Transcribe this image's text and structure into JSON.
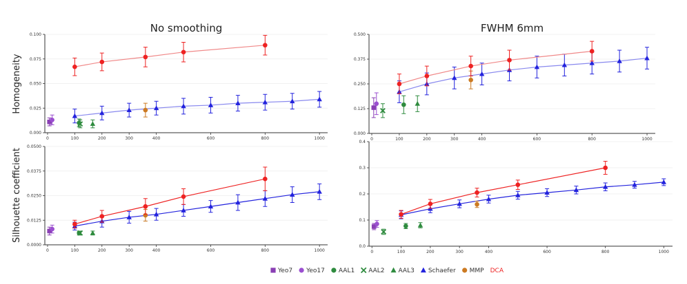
{
  "colors": {
    "Yeo7": "#8a3fb4",
    "Yeo17": "#9b4fd0",
    "AAL1": "#2e8b3e",
    "AAL2": "#2e8b3e",
    "AAL3": "#2e8b3e",
    "Schaefer": "#2222dd",
    "MMP": "#cc7a22",
    "DCA": "#ee2222",
    "SchaeferLine": "#8888ee",
    "DCALine": "#f08888"
  },
  "legend": [
    {
      "key": "Yeo7",
      "label": "Yeo7",
      "marker": "square"
    },
    {
      "key": "Yeo17",
      "label": "Yeo17",
      "marker": "circle"
    },
    {
      "key": "AAL1",
      "label": "AAL1",
      "marker": "circle"
    },
    {
      "key": "AAL2",
      "label": "AAL2",
      "marker": "x"
    },
    {
      "key": "AAL3",
      "label": "AAL3",
      "marker": "triangle"
    },
    {
      "key": "Schaefer",
      "label": "Schaefer",
      "marker": "triangle"
    },
    {
      "key": "MMP",
      "label": "MMP",
      "marker": "circle"
    },
    {
      "key": "DCA",
      "label": "DCA",
      "marker": "text"
    }
  ],
  "ylabels": {
    "top": "Homogeneity",
    "bottom": "Silhouette coefficient"
  },
  "chart_data": [
    {
      "id": "hom-nosmooth",
      "type": "scatter",
      "title": "No smoothing",
      "xlim": [
        -10,
        1030
      ],
      "ylim": [
        0,
        0.1
      ],
      "xticks": [
        0,
        100,
        200,
        300,
        400,
        600,
        800,
        1000
      ],
      "yticks": [
        0,
        0.025,
        0.05,
        0.075,
        0.1
      ],
      "ytick_labels": [
        "0.000",
        "0.025",
        "0.050",
        "0.075",
        "0.100"
      ],
      "series": [
        {
          "name": "Yeo7",
          "marker": "square",
          "points": [
            {
              "x": 7,
              "y": 0.011,
              "err": 0.004
            }
          ]
        },
        {
          "name": "Yeo17",
          "marker": "circle",
          "points": [
            {
              "x": 17,
              "y": 0.013,
              "err": 0.005
            }
          ]
        },
        {
          "name": "AAL1",
          "marker": "circle",
          "points": [
            {
              "x": 116,
              "y": 0.01,
              "err": 0.004
            }
          ]
        },
        {
          "name": "AAL2",
          "marker": "x",
          "points": [
            {
              "x": 120,
              "y": 0.009,
              "err": 0.004
            }
          ]
        },
        {
          "name": "AAL3",
          "marker": "triangle",
          "points": [
            {
              "x": 166,
              "y": 0.009,
              "err": 0.004
            }
          ]
        },
        {
          "name": "Schaefer",
          "marker": "triangle",
          "line": true,
          "points": [
            {
              "x": 100,
              "y": 0.017,
              "err": 0.007
            },
            {
              "x": 200,
              "y": 0.02,
              "err": 0.007
            },
            {
              "x": 300,
              "y": 0.023,
              "err": 0.007
            },
            {
              "x": 400,
              "y": 0.025,
              "err": 0.007
            },
            {
              "x": 500,
              "y": 0.027,
              "err": 0.008
            },
            {
              "x": 600,
              "y": 0.028,
              "err": 0.008
            },
            {
              "x": 700,
              "y": 0.03,
              "err": 0.008
            },
            {
              "x": 800,
              "y": 0.031,
              "err": 0.008
            },
            {
              "x": 900,
              "y": 0.032,
              "err": 0.008
            },
            {
              "x": 1000,
              "y": 0.034,
              "err": 0.008
            }
          ]
        },
        {
          "name": "MMP",
          "marker": "circle",
          "points": [
            {
              "x": 360,
              "y": 0.023,
              "err": 0.007
            }
          ]
        },
        {
          "name": "DCA",
          "marker": "circle",
          "line": true,
          "points": [
            {
              "x": 100,
              "y": 0.067,
              "err": 0.009
            },
            {
              "x": 200,
              "y": 0.072,
              "err": 0.009
            },
            {
              "x": 360,
              "y": 0.077,
              "err": 0.01
            },
            {
              "x": 500,
              "y": 0.082,
              "err": 0.01
            },
            {
              "x": 800,
              "y": 0.089,
              "err": 0.01
            }
          ]
        }
      ]
    },
    {
      "id": "hom-fwhm",
      "type": "scatter",
      "title": "FWHM 6mm",
      "xlim": [
        -10,
        1030
      ],
      "ylim": [
        0,
        0.5
      ],
      "xticks": [
        0,
        100,
        200,
        300,
        400,
        600,
        800,
        1000
      ],
      "yticks": [
        0,
        0.125,
        0.25,
        0.375,
        0.5
      ],
      "ytick_labels": [
        "0.000",
        "0.125",
        "0.250",
        "0.375",
        "0.500"
      ],
      "series": [
        {
          "name": "Yeo7",
          "marker": "square",
          "points": [
            {
              "x": 7,
              "y": 0.13,
              "err": 0.05
            }
          ]
        },
        {
          "name": "Yeo17",
          "marker": "circle",
          "points": [
            {
              "x": 17,
              "y": 0.15,
              "err": 0.055
            }
          ]
        },
        {
          "name": "AAL2",
          "marker": "x",
          "points": [
            {
              "x": 40,
              "y": 0.115,
              "err": 0.035
            }
          ]
        },
        {
          "name": "AAL1",
          "marker": "circle",
          "points": [
            {
              "x": 116,
              "y": 0.145,
              "err": 0.045
            }
          ]
        },
        {
          "name": "AAL3",
          "marker": "triangle",
          "points": [
            {
              "x": 166,
              "y": 0.15,
              "err": 0.04
            }
          ]
        },
        {
          "name": "Schaefer",
          "marker": "triangle",
          "line": true,
          "points": [
            {
              "x": 100,
              "y": 0.21,
              "err": 0.055
            },
            {
              "x": 200,
              "y": 0.25,
              "err": 0.055
            },
            {
              "x": 300,
              "y": 0.28,
              "err": 0.055
            },
            {
              "x": 400,
              "y": 0.3,
              "err": 0.055
            },
            {
              "x": 500,
              "y": 0.32,
              "err": 0.055
            },
            {
              "x": 600,
              "y": 0.335,
              "err": 0.055
            },
            {
              "x": 700,
              "y": 0.345,
              "err": 0.055
            },
            {
              "x": 800,
              "y": 0.355,
              "err": 0.055
            },
            {
              "x": 900,
              "y": 0.365,
              "err": 0.055
            },
            {
              "x": 1000,
              "y": 0.38,
              "err": 0.055
            }
          ]
        },
        {
          "name": "MMP",
          "marker": "circle",
          "points": [
            {
              "x": 360,
              "y": 0.27,
              "err": 0.045
            }
          ]
        },
        {
          "name": "DCA",
          "marker": "circle",
          "line": true,
          "points": [
            {
              "x": 100,
              "y": 0.25,
              "err": 0.05
            },
            {
              "x": 200,
              "y": 0.29,
              "err": 0.05
            },
            {
              "x": 360,
              "y": 0.34,
              "err": 0.05
            },
            {
              "x": 500,
              "y": 0.37,
              "err": 0.05
            },
            {
              "x": 800,
              "y": 0.415,
              "err": 0.05
            }
          ]
        }
      ]
    },
    {
      "id": "sil-nosmooth",
      "type": "scatter",
      "title": "",
      "xlim": [
        -10,
        1030
      ],
      "ylim": [
        0,
        0.05
      ],
      "xticks": [
        0,
        100,
        200,
        300,
        400,
        600,
        800,
        1000
      ],
      "yticks": [
        0,
        0.0125,
        0.025,
        0.0375,
        0.05
      ],
      "ytick_labels": [
        "0.0000",
        "0.0125",
        "0.0250",
        "0.0375",
        "0.0500"
      ],
      "series": [
        {
          "name": "Yeo7",
          "marker": "square",
          "points": [
            {
              "x": 7,
              "y": 0.007,
              "err": 0.002
            }
          ]
        },
        {
          "name": "Yeo17",
          "marker": "circle",
          "points": [
            {
              "x": 17,
              "y": 0.008,
              "err": 0.002
            }
          ]
        },
        {
          "name": "AAL1",
          "marker": "circle",
          "points": [
            {
              "x": 116,
              "y": 0.006,
              "err": 0.001
            }
          ]
        },
        {
          "name": "AAL2",
          "marker": "x",
          "points": [
            {
              "x": 120,
              "y": 0.006,
              "err": 0.001
            }
          ]
        },
        {
          "name": "AAL3",
          "marker": "triangle",
          "points": [
            {
              "x": 166,
              "y": 0.006,
              "err": 0.001
            }
          ]
        },
        {
          "name": "Schaefer",
          "marker": "triangle",
          "line": true,
          "points": [
            {
              "x": 100,
              "y": 0.0095,
              "err": 0.002
            },
            {
              "x": 200,
              "y": 0.012,
              "err": 0.003
            },
            {
              "x": 300,
              "y": 0.014,
              "err": 0.003
            },
            {
              "x": 400,
              "y": 0.0155,
              "err": 0.003
            },
            {
              "x": 500,
              "y": 0.0175,
              "err": 0.003
            },
            {
              "x": 600,
              "y": 0.0195,
              "err": 0.003
            },
            {
              "x": 700,
              "y": 0.0215,
              "err": 0.004
            },
            {
              "x": 800,
              "y": 0.0235,
              "err": 0.004
            },
            {
              "x": 900,
              "y": 0.0255,
              "err": 0.004
            },
            {
              "x": 1000,
              "y": 0.027,
              "err": 0.004
            }
          ]
        },
        {
          "name": "MMP",
          "marker": "circle",
          "points": [
            {
              "x": 360,
              "y": 0.015,
              "err": 0.003
            }
          ]
        },
        {
          "name": "DCA",
          "marker": "circle",
          "line": true,
          "points": [
            {
              "x": 100,
              "y": 0.0105,
              "err": 0.002
            },
            {
              "x": 200,
              "y": 0.0145,
              "err": 0.003
            },
            {
              "x": 360,
              "y": 0.0195,
              "err": 0.004
            },
            {
              "x": 500,
              "y": 0.0245,
              "err": 0.004
            },
            {
              "x": 800,
              "y": 0.0335,
              "err": 0.006
            }
          ]
        }
      ]
    },
    {
      "id": "sil-fwhm",
      "type": "scatter",
      "title": "",
      "xlim": [
        -10,
        1030
      ],
      "ylim": [
        0,
        0.4
      ],
      "xticks": [
        0,
        100,
        200,
        300,
        400,
        600,
        800,
        1000
      ],
      "yticks": [
        0,
        0.1,
        0.2,
        0.3,
        0.4
      ],
      "ytick_labels": [
        "0.0",
        "0.1",
        "0.2",
        "0.3",
        "0.4"
      ],
      "series": [
        {
          "name": "Yeo7",
          "marker": "square",
          "points": [
            {
              "x": 7,
              "y": 0.075,
              "err": 0.012
            }
          ]
        },
        {
          "name": "Yeo17",
          "marker": "circle",
          "points": [
            {
              "x": 17,
              "y": 0.085,
              "err": 0.013
            }
          ]
        },
        {
          "name": "AAL2",
          "marker": "x",
          "points": [
            {
              "x": 40,
              "y": 0.055,
              "err": 0.01
            }
          ]
        },
        {
          "name": "AAL1",
          "marker": "circle",
          "points": [
            {
              "x": 116,
              "y": 0.077,
              "err": 0.01
            }
          ]
        },
        {
          "name": "AAL3",
          "marker": "triangle",
          "points": [
            {
              "x": 166,
              "y": 0.08,
              "err": 0.01
            }
          ]
        },
        {
          "name": "Schaefer",
          "marker": "triangle",
          "line": true,
          "points": [
            {
              "x": 100,
              "y": 0.12,
              "err": 0.015
            },
            {
              "x": 200,
              "y": 0.143,
              "err": 0.015
            },
            {
              "x": 300,
              "y": 0.162,
              "err": 0.015
            },
            {
              "x": 400,
              "y": 0.18,
              "err": 0.015
            },
            {
              "x": 500,
              "y": 0.195,
              "err": 0.015
            },
            {
              "x": 600,
              "y": 0.205,
              "err": 0.015
            },
            {
              "x": 700,
              "y": 0.215,
              "err": 0.015
            },
            {
              "x": 800,
              "y": 0.227,
              "err": 0.015
            },
            {
              "x": 900,
              "y": 0.235,
              "err": 0.013
            },
            {
              "x": 1000,
              "y": 0.245,
              "err": 0.013
            }
          ]
        },
        {
          "name": "MMP",
          "marker": "circle",
          "points": [
            {
              "x": 360,
              "y": 0.16,
              "err": 0.012
            }
          ]
        },
        {
          "name": "DCA",
          "marker": "circle",
          "line": true,
          "points": [
            {
              "x": 100,
              "y": 0.122,
              "err": 0.015
            },
            {
              "x": 200,
              "y": 0.162,
              "err": 0.017
            },
            {
              "x": 360,
              "y": 0.205,
              "err": 0.017
            },
            {
              "x": 500,
              "y": 0.235,
              "err": 0.018
            },
            {
              "x": 800,
              "y": 0.3,
              "err": 0.025
            }
          ]
        }
      ]
    }
  ]
}
